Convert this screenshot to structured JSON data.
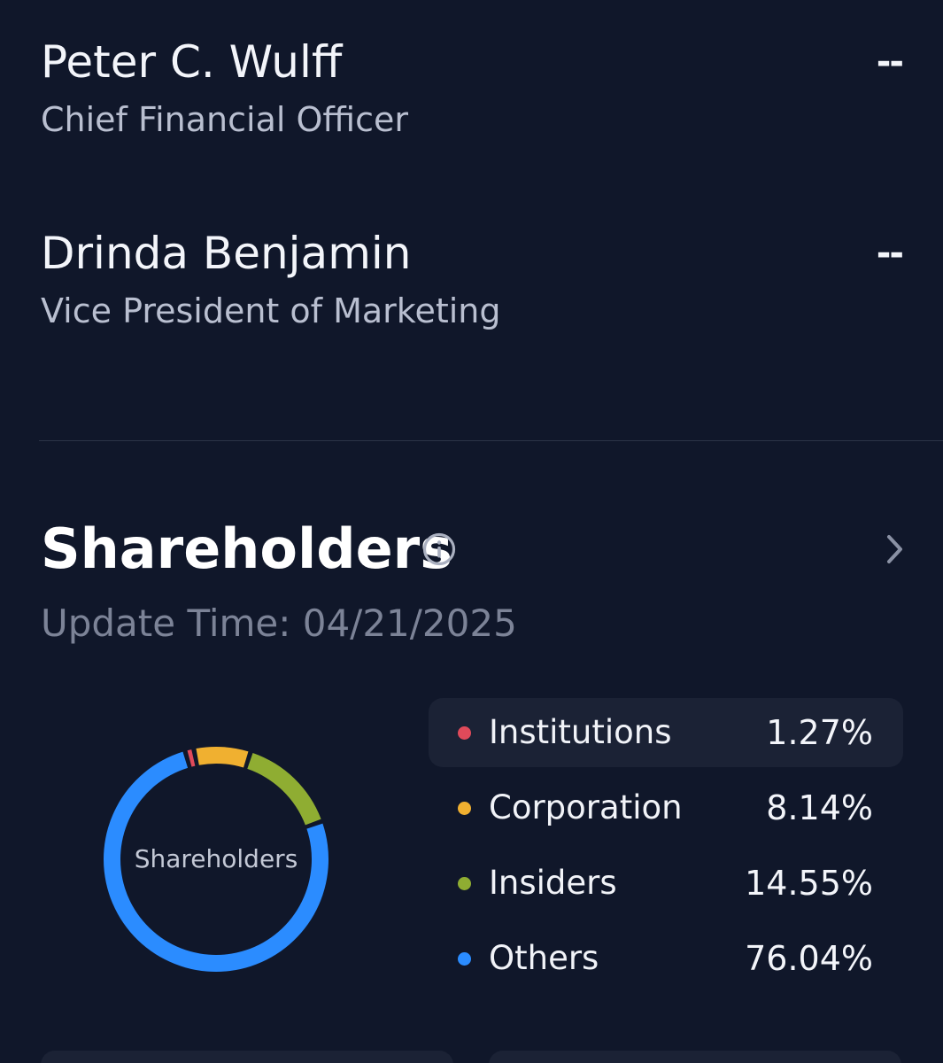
{
  "executives": [
    {
      "name": "Peter C. Wulff",
      "title": "Chief Financial Officer",
      "value": "--"
    },
    {
      "name": "Drinda Benjamin",
      "title": "Vice President of Marketing",
      "value": "--"
    }
  ],
  "shareholders": {
    "title": "Shareholders",
    "info_icon": "info-icon",
    "more_icon": "chevron-right-icon",
    "update_time": "Update Time: 04/21/2025",
    "donut_center_label": "Shareholders"
  },
  "chart_data": {
    "type": "pie",
    "title": "Shareholders",
    "categories": [
      "Institutions",
      "Corporation",
      "Insiders",
      "Others"
    ],
    "values": [
      1.27,
      8.14,
      14.55,
      76.04
    ],
    "value_labels": [
      "1.27%",
      "8.14%",
      "14.55%",
      "76.04%"
    ],
    "colors": [
      "#e04a5a",
      "#f0b030",
      "#8fad32",
      "#2b8cff"
    ],
    "selected": "Institutions"
  }
}
